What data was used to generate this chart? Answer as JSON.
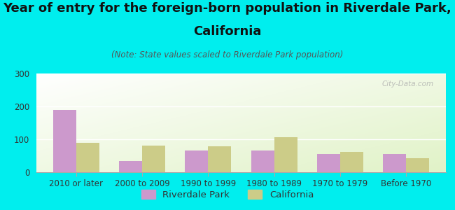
{
  "title_line1": "Year of entry for the foreign-born population in Riverdale Park,",
  "title_line2": "California",
  "subtitle": "(Note: State values scaled to Riverdale Park population)",
  "categories": [
    "2010 or later",
    "2000 to 2009",
    "1990 to 1999",
    "1980 to 1989",
    "1970 to 1979",
    "Before 1970"
  ],
  "riverdale_values": [
    190,
    35,
    65,
    65,
    55,
    55
  ],
  "california_values": [
    90,
    80,
    78,
    107,
    62,
    42
  ],
  "riverdale_color": "#cc99cc",
  "california_color": "#cccc88",
  "background_color": "#00eeee",
  "ylim": [
    0,
    300
  ],
  "yticks": [
    0,
    100,
    200,
    300
  ],
  "bar_width": 0.35,
  "legend_labels": [
    "Riverdale Park",
    "California"
  ],
  "watermark": "City-Data.com",
  "title_fontsize": 13,
  "subtitle_fontsize": 8.5,
  "tick_fontsize": 8.5,
  "legend_fontsize": 9.5
}
